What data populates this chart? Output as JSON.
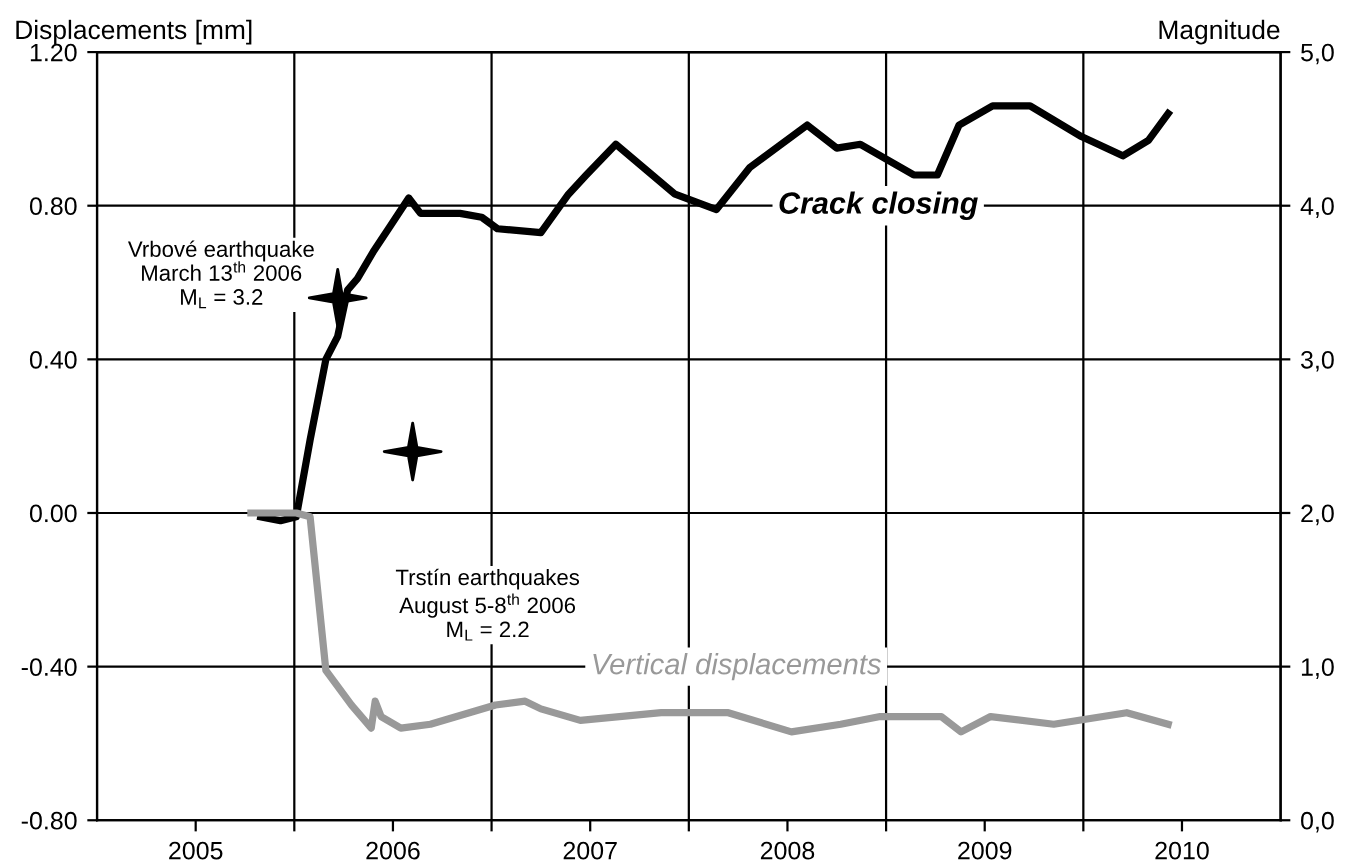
{
  "chart_data": {
    "type": "line",
    "ylabel": "Displacements [mm]",
    "y2label": "Magnitude",
    "xlim": [
      2005,
      2011
    ],
    "ylim": [
      -0.8,
      1.2
    ],
    "y2lim": [
      0,
      5
    ],
    "xticks": [
      {
        "value": 2006,
        "label": null
      },
      {
        "value": 2007,
        "label": null
      },
      {
        "value": 2008,
        "label": null
      },
      {
        "value": 2009,
        "label": null
      },
      {
        "value": 2010,
        "label": null
      },
      {
        "value": 2005.5,
        "label": "2005"
      },
      {
        "value": 2006.5,
        "label": "2006"
      },
      {
        "value": 2007.5,
        "label": "2007"
      },
      {
        "value": 2008.5,
        "label": "2008"
      },
      {
        "value": 2009.5,
        "label": "2009"
      },
      {
        "value": 2010.5,
        "label": "2010"
      }
    ],
    "yticks": [
      {
        "value": -0.8,
        "label": "-0.80"
      },
      {
        "value": -0.4,
        "label": "-0.40"
      },
      {
        "value": 0,
        "label": "0.00"
      },
      {
        "value": 0.4,
        "label": "0.40"
      },
      {
        "value": 0.8,
        "label": "0.80"
      },
      {
        "value": 1.2,
        "label": "1.20"
      }
    ],
    "y2ticks": [
      {
        "value": 0,
        "label": "0,0"
      },
      {
        "value": 1,
        "label": "1,0"
      },
      {
        "value": 2,
        "label": "2,0"
      },
      {
        "value": 3,
        "label": "3,0"
      },
      {
        "value": 4,
        "label": "4,0"
      },
      {
        "value": 5,
        "label": "5,0"
      }
    ],
    "grid": true,
    "legend": false,
    "line_style": "solid",
    "series": [
      {
        "name": "Crack closing",
        "color": "#000000",
        "x": [
          2005.83,
          2005.93,
          2006.01,
          2006.08,
          2006.16,
          2006.22,
          2006.27,
          2006.32,
          2006.4,
          2006.49,
          2006.58,
          2006.64,
          2006.84,
          2006.95,
          2007.03,
          2007.25,
          2007.39,
          2007.48,
          2007.63,
          2007.93,
          2008.14,
          2008.31,
          2008.6,
          2008.75,
          2008.87,
          2009.14,
          2009.26,
          2009.37,
          2009.54,
          2009.73,
          2009.99,
          2010.2,
          2010.33,
          2010.43
        ],
        "values": [
          -0.01,
          -0.02,
          -0.01,
          0.19,
          0.4,
          0.46,
          0.58,
          0.61,
          0.68,
          0.75,
          0.82,
          0.78,
          0.78,
          0.77,
          0.74,
          0.73,
          0.83,
          0.88,
          0.96,
          0.83,
          0.79,
          0.9,
          1.01,
          0.95,
          0.96,
          0.88,
          0.88,
          1.01,
          1.06,
          1.06,
          0.98,
          0.93,
          0.97,
          1.04
        ]
      },
      {
        "name": "Vertical displacements",
        "color": "#999999",
        "x": [
          2005.78,
          2006.01,
          2006.08,
          2006.16,
          2006.29,
          2006.39,
          2006.41,
          2006.44,
          2006.54,
          2006.69,
          2007.02,
          2007.17,
          2007.25,
          2007.45,
          2007.86,
          2008.2,
          2008.52,
          2008.77,
          2008.97,
          2009.28,
          2009.38,
          2009.53,
          2009.85,
          2010.22,
          2010.43
        ],
        "values": [
          0.0,
          0.0,
          -0.01,
          -0.41,
          -0.5,
          -0.56,
          -0.49,
          -0.53,
          -0.56,
          -0.55,
          -0.5,
          -0.49,
          -0.51,
          -0.54,
          -0.52,
          -0.52,
          -0.57,
          -0.55,
          -0.53,
          -0.53,
          -0.57,
          -0.53,
          -0.55,
          -0.52,
          -0.55
        ]
      },
      {
        "type": "scatter",
        "axis": "y2",
        "marker": "star",
        "color": "#000000",
        "x": [
          2006.22,
          2006.6
        ],
        "values": [
          3.4,
          2.4
        ]
      }
    ],
    "annotations": [
      "Vrbové earthquake\nMarch 13$^{th}$ 2006\nM$_{L}$ = 3.2",
      "Trstín earthquakes\nAugust 5-8$^{th}$ 2006\nM$_{L}$ = 2.2"
    ]
  }
}
